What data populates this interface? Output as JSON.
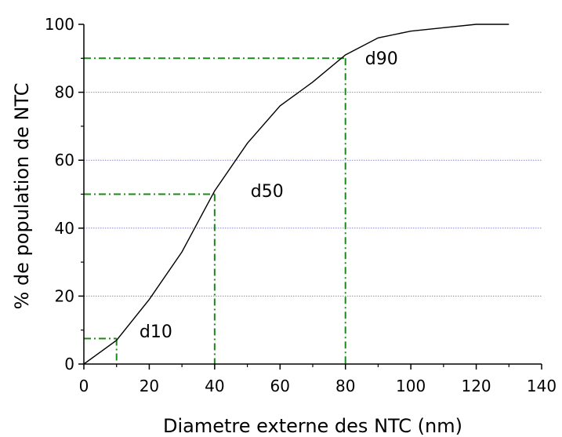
{
  "chart_data": {
    "type": "line",
    "xlabel": "Diametre externe des NTC (nm)",
    "ylabel": "% de population de NTC",
    "xlim": [
      0,
      140
    ],
    "ylim": [
      0,
      100
    ],
    "xticks": [
      0,
      20,
      40,
      60,
      80,
      100,
      120,
      140
    ],
    "yticks": [
      0,
      20,
      40,
      60,
      80,
      100
    ],
    "x_tick_labels": [
      "0",
      "20",
      "40",
      "60",
      "80",
      "100",
      "120",
      "140"
    ],
    "y_tick_labels": [
      "0",
      "20",
      "40",
      "60",
      "80",
      "100"
    ],
    "grid": "horizontal dotted at 20, 40, 60, 80",
    "colors": {
      "curve": "#000000",
      "markers": "#1a8a1a",
      "grid": "#8a8ad6"
    },
    "series": [
      {
        "x": [
          0,
          10,
          20,
          30,
          40,
          50,
          60,
          70,
          80,
          90,
          100,
          110,
          120,
          130
        ],
        "y": [
          0,
          7,
          19,
          33,
          51,
          65,
          76,
          83,
          91,
          96,
          98,
          99,
          100,
          100
        ]
      }
    ],
    "annotations": [
      {
        "label": "d10",
        "x": 10,
        "y": 7.5,
        "text_x": 17,
        "text_y": 7.8
      },
      {
        "label": "d50",
        "x": 40,
        "y": 50,
        "text_x": 51,
        "text_y": 49.2
      },
      {
        "label": "d90",
        "x": 80,
        "y": 90,
        "text_x": 86,
        "text_y": 88.2
      }
    ]
  }
}
